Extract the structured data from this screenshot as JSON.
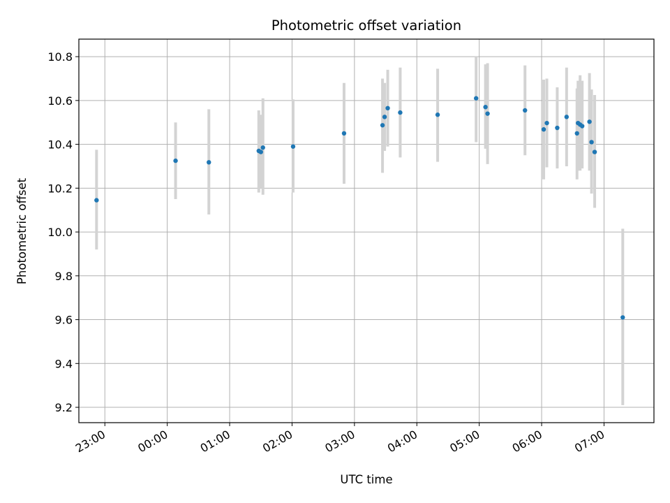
{
  "chart_data": {
    "type": "scatter",
    "title": "Photometric offset variation",
    "xlabel": "UTC time",
    "ylabel": "Photometric offset",
    "xlim": [
      "22:35",
      "07:48"
    ],
    "ylim": [
      9.13,
      10.88
    ],
    "grid": true,
    "x_ticks": [
      "23:00",
      "00:00",
      "01:00",
      "02:00",
      "03:00",
      "04:00",
      "05:00",
      "06:00",
      "07:00"
    ],
    "y_ticks": [
      9.2,
      9.4,
      9.6,
      9.8,
      10.0,
      10.2,
      10.4,
      10.6,
      10.8
    ],
    "y_tick_labels": [
      "9.2",
      "9.4",
      "9.6",
      "9.8",
      "10.0",
      "10.2",
      "10.4",
      "10.6",
      "10.8"
    ],
    "marker_color": "#1f77b4",
    "errorbar_color": "#d3d3d3",
    "points": [
      {
        "x": "22:52",
        "y": 10.145,
        "ylow": 9.92,
        "yhigh": 10.375
      },
      {
        "x": "00:08",
        "y": 10.325,
        "ylow": 10.15,
        "yhigh": 10.5
      },
      {
        "x": "00:40",
        "y": 10.318,
        "ylow": 10.08,
        "yhigh": 10.56
      },
      {
        "x": "01:28",
        "y": 10.37,
        "ylow": 10.18,
        "yhigh": 10.555
      },
      {
        "x": "01:30",
        "y": 10.365,
        "ylow": 10.2,
        "yhigh": 10.535
      },
      {
        "x": "01:32",
        "y": 10.385,
        "ylow": 10.17,
        "yhigh": 10.61
      },
      {
        "x": "02:01",
        "y": 10.39,
        "ylow": 10.18,
        "yhigh": 10.605
      },
      {
        "x": "02:50",
        "y": 10.45,
        "ylow": 10.22,
        "yhigh": 10.68
      },
      {
        "x": "03:27",
        "y": 10.487,
        "ylow": 10.27,
        "yhigh": 10.7
      },
      {
        "x": "03:29",
        "y": 10.525,
        "ylow": 10.37,
        "yhigh": 10.68
      },
      {
        "x": "03:32",
        "y": 10.565,
        "ylow": 10.39,
        "yhigh": 10.74
      },
      {
        "x": "03:44",
        "y": 10.545,
        "ylow": 10.34,
        "yhigh": 10.75
      },
      {
        "x": "04:20",
        "y": 10.535,
        "ylow": 10.32,
        "yhigh": 10.745
      },
      {
        "x": "04:57",
        "y": 10.61,
        "ylow": 10.41,
        "yhigh": 10.8
      },
      {
        "x": "05:06",
        "y": 10.57,
        "ylow": 10.38,
        "yhigh": 10.765
      },
      {
        "x": "05:08",
        "y": 10.54,
        "ylow": 10.31,
        "yhigh": 10.77
      },
      {
        "x": "05:44",
        "y": 10.555,
        "ylow": 10.35,
        "yhigh": 10.76
      },
      {
        "x": "06:02",
        "y": 10.468,
        "ylow": 10.24,
        "yhigh": 10.695
      },
      {
        "x": "06:05",
        "y": 10.497,
        "ylow": 10.295,
        "yhigh": 10.7
      },
      {
        "x": "06:15",
        "y": 10.475,
        "ylow": 10.29,
        "yhigh": 10.66
      },
      {
        "x": "06:24",
        "y": 10.525,
        "ylow": 10.3,
        "yhigh": 10.75
      },
      {
        "x": "06:34",
        "y": 10.45,
        "ylow": 10.24,
        "yhigh": 10.655
      },
      {
        "x": "06:35",
        "y": 10.497,
        "ylow": 10.28,
        "yhigh": 10.69
      },
      {
        "x": "06:37",
        "y": 10.49,
        "ylow": 10.28,
        "yhigh": 10.715
      },
      {
        "x": "06:39",
        "y": 10.483,
        "ylow": 10.29,
        "yhigh": 10.69
      },
      {
        "x": "06:46",
        "y": 10.503,
        "ylow": 10.28,
        "yhigh": 10.725
      },
      {
        "x": "06:48",
        "y": 10.41,
        "ylow": 10.175,
        "yhigh": 10.65
      },
      {
        "x": "06:51",
        "y": 10.365,
        "ylow": 10.11,
        "yhigh": 10.625
      },
      {
        "x": "07:18",
        "y": 9.61,
        "ylow": 9.21,
        "yhigh": 10.015
      }
    ]
  }
}
